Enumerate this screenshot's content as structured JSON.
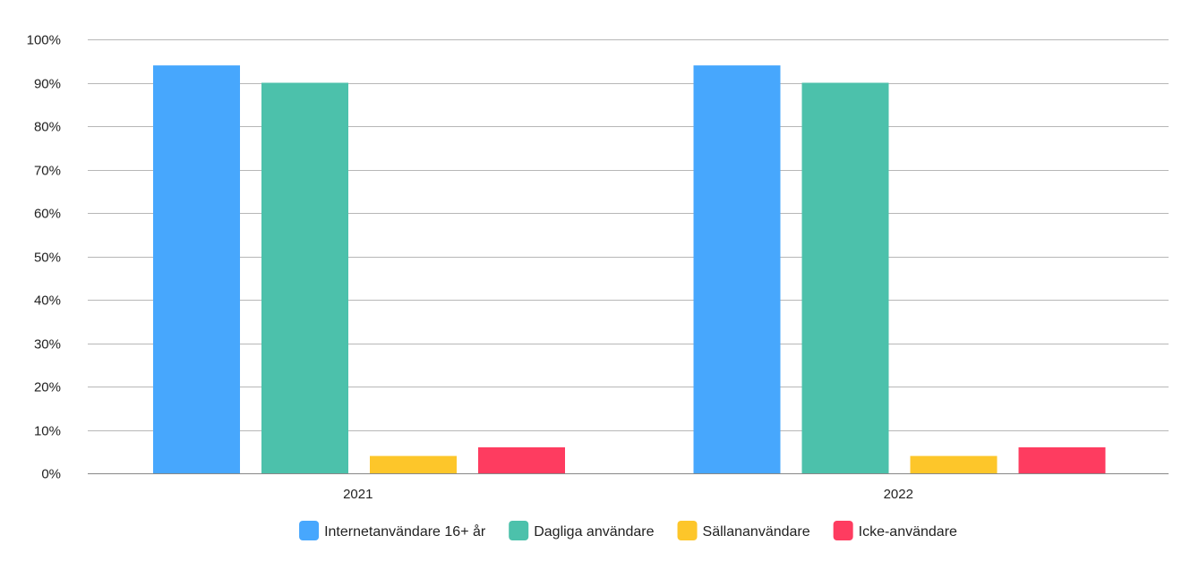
{
  "chart_data": {
    "type": "bar",
    "categories": [
      "2021",
      "2022"
    ],
    "series": [
      {
        "name": "Internetanvändare 16+ år",
        "color": "#47a7fd",
        "values": [
          94,
          94
        ]
      },
      {
        "name": "Dagliga användare",
        "color": "#4cc1ab",
        "values": [
          90,
          90
        ]
      },
      {
        "name": "Sällananvändare",
        "color": "#fdc62a",
        "values": [
          4,
          4
        ]
      },
      {
        "name": "Icke-användare",
        "color": "#fe3c60",
        "values": [
          6,
          6
        ]
      }
    ],
    "yticks": [
      "0%",
      "10%",
      "20%",
      "30%",
      "40%",
      "50%",
      "60%",
      "70%",
      "80%",
      "90%",
      "100%"
    ],
    "ylim": [
      0,
      100
    ],
    "grid": true,
    "legend_position": "bottom-center",
    "title": "",
    "xlabel": "",
    "ylabel": ""
  }
}
